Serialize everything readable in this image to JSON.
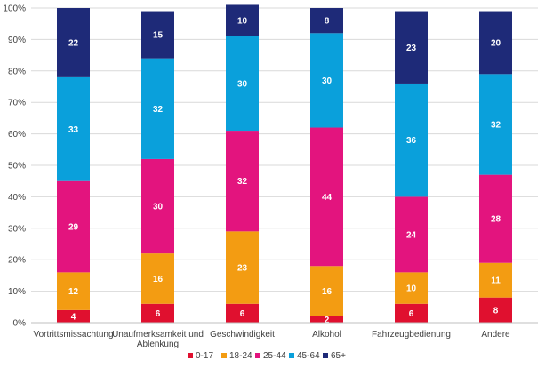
{
  "chart_data": {
    "type": "bar",
    "stacked": true,
    "categories": [
      [
        "Vortrittsmissachtung"
      ],
      [
        "Unaufmerksamkeit und",
        "Ablenkung"
      ],
      [
        "Geschwindigkeit"
      ],
      [
        "Alkohol"
      ],
      [
        "Fahrzeugbedienung"
      ],
      [
        "Andere"
      ]
    ],
    "series": [
      {
        "name": "0-17",
        "color": "#e0102f",
        "values": [
          4,
          6,
          6,
          2,
          6,
          8
        ]
      },
      {
        "name": "18-24",
        "color": "#f39c12",
        "values": [
          12,
          16,
          23,
          16,
          10,
          11
        ]
      },
      {
        "name": "25-44",
        "color": "#e3147e",
        "values": [
          29,
          30,
          32,
          44,
          24,
          28
        ]
      },
      {
        "name": "45-64",
        "color": "#0aa0db",
        "values": [
          33,
          32,
          30,
          30,
          36,
          32
        ]
      },
      {
        "name": "65+",
        "color": "#1e2a78",
        "values": [
          22,
          15,
          10,
          8,
          23,
          20
        ]
      }
    ],
    "y_ticks": [
      "0%",
      "10%",
      "20%",
      "30%",
      "40%",
      "50%",
      "60%",
      "70%",
      "80%",
      "90%",
      "100%"
    ],
    "ylim": [
      0,
      100
    ],
    "grid": true,
    "legend_position": "bottom",
    "title": "",
    "xlabel": "",
    "ylabel": ""
  }
}
